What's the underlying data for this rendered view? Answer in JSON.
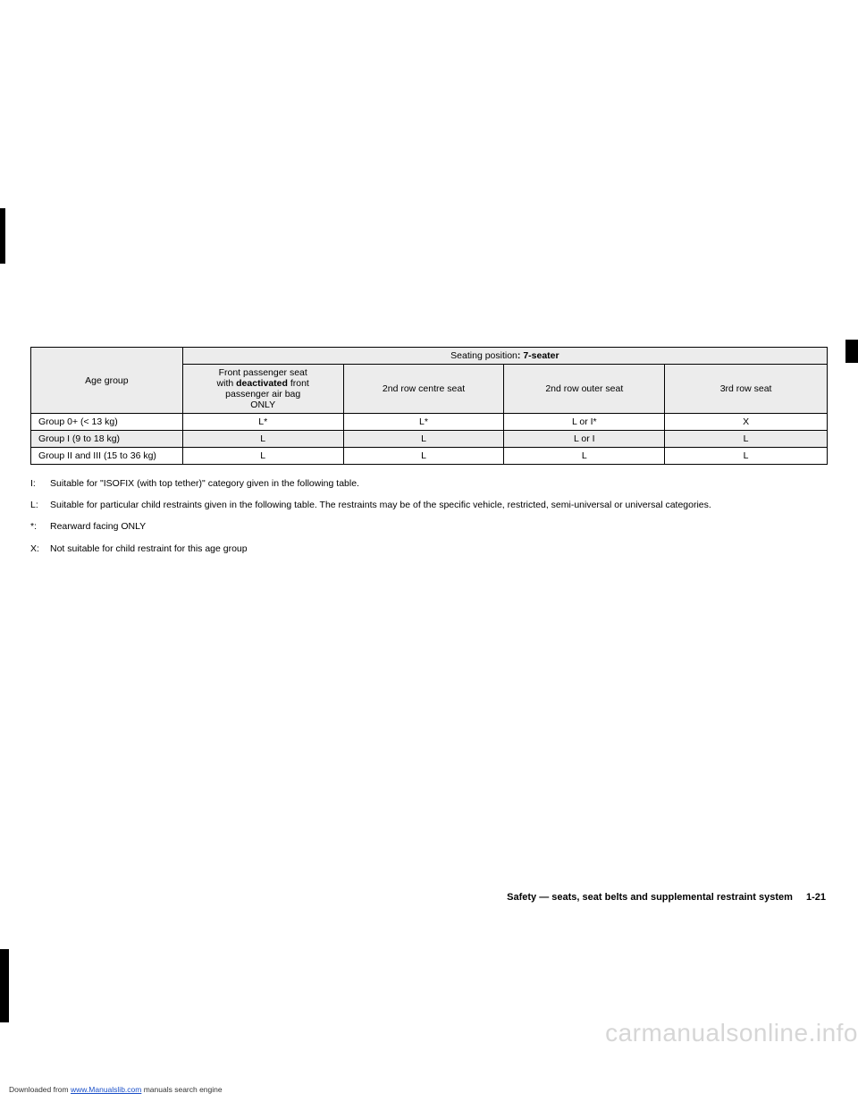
{
  "table": {
    "header": {
      "age_group": "Age group",
      "seating_position_prefix": "Seating position",
      "seating_position_suffix": ": 7-seater",
      "col_front_l1": "Front passenger seat",
      "col_front_l2a": "with ",
      "col_front_l2b": "deactivated",
      "col_front_l2c": " front",
      "col_front_l3": "passenger air bag",
      "col_front_l4": "ONLY",
      "col_centre": "2nd row centre seat",
      "col_outer": "2nd row outer seat",
      "col_3rd": "3rd row seat"
    },
    "rows": [
      {
        "age": "Group 0+ (< 13 kg)",
        "front": "L*",
        "centre": "L*",
        "outer": "L or I*",
        "third": "X"
      },
      {
        "age": "Group I (9 to 18 kg)",
        "front": "L",
        "centre": "L",
        "outer": "L or I",
        "third": "L"
      },
      {
        "age": "Group II and III (15 to 36 kg)",
        "front": "L",
        "centre": "L",
        "outer": "L",
        "third": "L"
      }
    ]
  },
  "legend": [
    {
      "key": "I:",
      "text": "Suitable for \"ISOFIX (with top tether)\" category given in the following table."
    },
    {
      "key": "L:",
      "text": "Suitable for particular child restraints given in the following table. The restraints may be of the specific vehicle, restricted, semi-universal or universal categories."
    },
    {
      "key": "*:",
      "text": "Rearward facing ONLY"
    },
    {
      "key": "X:",
      "text": "Not suitable for child restraint for this age group"
    }
  ],
  "footer": {
    "section": "Safety — seats, seat belts and supplemental restraint system",
    "page": "1-21"
  },
  "watermark": "carmanualsonline.info",
  "download": {
    "prefix": "Downloaded from ",
    "link_text": "www.Manualslib.com",
    "link_href": "https://www.manualslib.com",
    "suffix": " manuals search engine"
  }
}
